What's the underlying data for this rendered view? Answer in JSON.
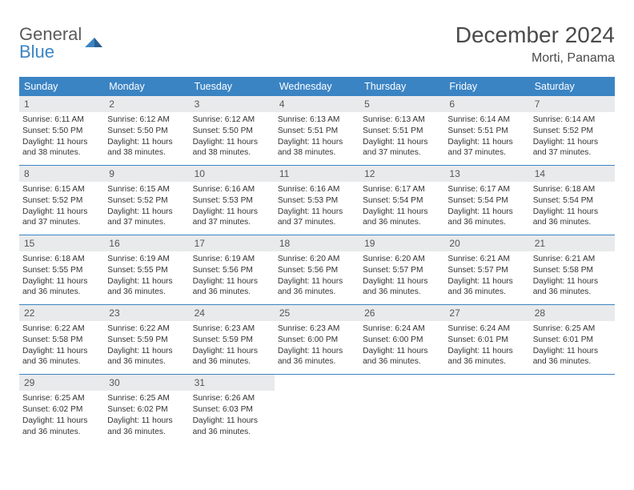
{
  "logo": {
    "line1": "General",
    "line2": "Blue"
  },
  "title": "December 2024",
  "location": "Morti, Panama",
  "colors": {
    "header_bg": "#3b84c4",
    "header_text": "#ffffff",
    "daynum_bg": "#e9eaeb",
    "text": "#333333",
    "logo_gray": "#5a5a5a",
    "logo_blue": "#3b84c4",
    "week_border": "#3b84c4"
  },
  "days_of_week": [
    "Sunday",
    "Monday",
    "Tuesday",
    "Wednesday",
    "Thursday",
    "Friday",
    "Saturday"
  ],
  "weeks": [
    [
      {
        "n": "1",
        "sr": "6:11 AM",
        "ss": "5:50 PM",
        "dl": "11 hours and 38 minutes."
      },
      {
        "n": "2",
        "sr": "6:12 AM",
        "ss": "5:50 PM",
        "dl": "11 hours and 38 minutes."
      },
      {
        "n": "3",
        "sr": "6:12 AM",
        "ss": "5:50 PM",
        "dl": "11 hours and 38 minutes."
      },
      {
        "n": "4",
        "sr": "6:13 AM",
        "ss": "5:51 PM",
        "dl": "11 hours and 38 minutes."
      },
      {
        "n": "5",
        "sr": "6:13 AM",
        "ss": "5:51 PM",
        "dl": "11 hours and 37 minutes."
      },
      {
        "n": "6",
        "sr": "6:14 AM",
        "ss": "5:51 PM",
        "dl": "11 hours and 37 minutes."
      },
      {
        "n": "7",
        "sr": "6:14 AM",
        "ss": "5:52 PM",
        "dl": "11 hours and 37 minutes."
      }
    ],
    [
      {
        "n": "8",
        "sr": "6:15 AM",
        "ss": "5:52 PM",
        "dl": "11 hours and 37 minutes."
      },
      {
        "n": "9",
        "sr": "6:15 AM",
        "ss": "5:52 PM",
        "dl": "11 hours and 37 minutes."
      },
      {
        "n": "10",
        "sr": "6:16 AM",
        "ss": "5:53 PM",
        "dl": "11 hours and 37 minutes."
      },
      {
        "n": "11",
        "sr": "6:16 AM",
        "ss": "5:53 PM",
        "dl": "11 hours and 37 minutes."
      },
      {
        "n": "12",
        "sr": "6:17 AM",
        "ss": "5:54 PM",
        "dl": "11 hours and 36 minutes."
      },
      {
        "n": "13",
        "sr": "6:17 AM",
        "ss": "5:54 PM",
        "dl": "11 hours and 36 minutes."
      },
      {
        "n": "14",
        "sr": "6:18 AM",
        "ss": "5:54 PM",
        "dl": "11 hours and 36 minutes."
      }
    ],
    [
      {
        "n": "15",
        "sr": "6:18 AM",
        "ss": "5:55 PM",
        "dl": "11 hours and 36 minutes."
      },
      {
        "n": "16",
        "sr": "6:19 AM",
        "ss": "5:55 PM",
        "dl": "11 hours and 36 minutes."
      },
      {
        "n": "17",
        "sr": "6:19 AM",
        "ss": "5:56 PM",
        "dl": "11 hours and 36 minutes."
      },
      {
        "n": "18",
        "sr": "6:20 AM",
        "ss": "5:56 PM",
        "dl": "11 hours and 36 minutes."
      },
      {
        "n": "19",
        "sr": "6:20 AM",
        "ss": "5:57 PM",
        "dl": "11 hours and 36 minutes."
      },
      {
        "n": "20",
        "sr": "6:21 AM",
        "ss": "5:57 PM",
        "dl": "11 hours and 36 minutes."
      },
      {
        "n": "21",
        "sr": "6:21 AM",
        "ss": "5:58 PM",
        "dl": "11 hours and 36 minutes."
      }
    ],
    [
      {
        "n": "22",
        "sr": "6:22 AM",
        "ss": "5:58 PM",
        "dl": "11 hours and 36 minutes."
      },
      {
        "n": "23",
        "sr": "6:22 AM",
        "ss": "5:59 PM",
        "dl": "11 hours and 36 minutes."
      },
      {
        "n": "24",
        "sr": "6:23 AM",
        "ss": "5:59 PM",
        "dl": "11 hours and 36 minutes."
      },
      {
        "n": "25",
        "sr": "6:23 AM",
        "ss": "6:00 PM",
        "dl": "11 hours and 36 minutes."
      },
      {
        "n": "26",
        "sr": "6:24 AM",
        "ss": "6:00 PM",
        "dl": "11 hours and 36 minutes."
      },
      {
        "n": "27",
        "sr": "6:24 AM",
        "ss": "6:01 PM",
        "dl": "11 hours and 36 minutes."
      },
      {
        "n": "28",
        "sr": "6:25 AM",
        "ss": "6:01 PM",
        "dl": "11 hours and 36 minutes."
      }
    ],
    [
      {
        "n": "29",
        "sr": "6:25 AM",
        "ss": "6:02 PM",
        "dl": "11 hours and 36 minutes."
      },
      {
        "n": "30",
        "sr": "6:25 AM",
        "ss": "6:02 PM",
        "dl": "11 hours and 36 minutes."
      },
      {
        "n": "31",
        "sr": "6:26 AM",
        "ss": "6:03 PM",
        "dl": "11 hours and 36 minutes."
      },
      null,
      null,
      null,
      null
    ]
  ]
}
